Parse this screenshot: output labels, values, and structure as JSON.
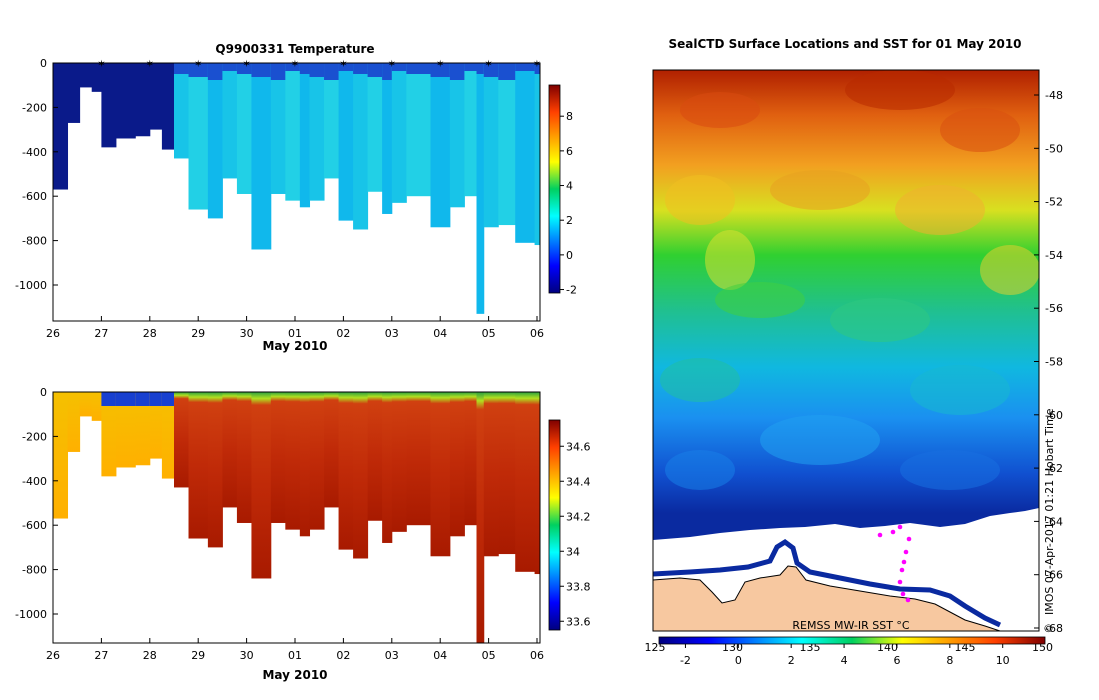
{
  "chart_data": [
    {
      "type": "heatmap",
      "title": "Q9900331  Temperature",
      "xlabel": "May 2010",
      "ylabel": "",
      "x_tick_labels": [
        "26",
        "27",
        "28",
        "29",
        "30",
        "01",
        "02",
        "03",
        "04",
        "05",
        "06"
      ],
      "y_tick_values": [
        0,
        -200,
        -400,
        -600,
        -800,
        -1000
      ],
      "ylim": [
        -1130,
        0
      ],
      "xlim_days": [
        0,
        10.1
      ],
      "colorbar": {
        "ticks": [
          8,
          6,
          4,
          2,
          0,
          -2
        ],
        "range": [
          -2.2,
          9.8
        ]
      },
      "profile_marker_days": [
        1.0,
        2.0,
        3.0,
        4.0,
        5.0,
        6.0,
        7.0,
        8.0,
        9.0,
        10.0
      ],
      "profiles": [
        {
          "day": 0.0,
          "depth": 570
        },
        {
          "day": 0.3,
          "depth": 270
        },
        {
          "day": 0.55,
          "depth": 110
        },
        {
          "day": 0.8,
          "depth": 130
        },
        {
          "day": 1.0,
          "depth": 380
        },
        {
          "day": 1.3,
          "depth": 340
        },
        {
          "day": 1.7,
          "depth": 330
        },
        {
          "day": 2.0,
          "depth": 300
        },
        {
          "day": 2.25,
          "depth": 390
        },
        {
          "day": 2.5,
          "depth": 430
        },
        {
          "day": 2.8,
          "depth": 660
        },
        {
          "day": 3.2,
          "depth": 700
        },
        {
          "day": 3.5,
          "depth": 520
        },
        {
          "day": 3.8,
          "depth": 590
        },
        {
          "day": 4.1,
          "depth": 840
        },
        {
          "day": 4.5,
          "depth": 590
        },
        {
          "day": 4.8,
          "depth": 620
        },
        {
          "day": 5.1,
          "depth": 650
        },
        {
          "day": 5.3,
          "depth": 620
        },
        {
          "day": 5.6,
          "depth": 520
        },
        {
          "day": 5.9,
          "depth": 710
        },
        {
          "day": 6.2,
          "depth": 750
        },
        {
          "day": 6.5,
          "depth": 580
        },
        {
          "day": 6.8,
          "depth": 680
        },
        {
          "day": 7.0,
          "depth": 630
        },
        {
          "day": 7.3,
          "depth": 600
        },
        {
          "day": 7.8,
          "depth": 740
        },
        {
          "day": 8.2,
          "depth": 650
        },
        {
          "day": 8.5,
          "depth": 600
        },
        {
          "day": 8.75,
          "depth": 1130
        },
        {
          "day": 8.9,
          "depth": 740
        },
        {
          "day": 9.2,
          "depth": 730
        },
        {
          "day": 9.55,
          "depth": 810
        },
        {
          "day": 9.95,
          "depth": 820
        }
      ]
    },
    {
      "type": "heatmap",
      "title": "",
      "xlabel": "May 2010",
      "ylabel": "",
      "x_tick_labels": [
        "26",
        "27",
        "28",
        "29",
        "30",
        "01",
        "02",
        "03",
        "04",
        "05",
        "06"
      ],
      "y_tick_values": [
        0,
        -200,
        -400,
        -600,
        -800,
        -1000
      ],
      "ylim": [
        -1130,
        0
      ],
      "colorbar": {
        "ticks": [
          34.6,
          34.4,
          34.2,
          34,
          33.8,
          33.6
        ],
        "range": [
          33.55,
          34.75
        ]
      }
    },
    {
      "type": "heatmap",
      "title": "SealCTD Surface Locations and SST for 01 May 2010",
      "xlabel": "",
      "ylabel": "",
      "y_tick_labels": [
        "-48",
        "-50",
        "-52",
        "-54",
        "-56",
        "-58",
        "-60",
        "-62",
        "-64",
        "-66",
        "-68"
      ],
      "x_tick_labels": [
        "125",
        "130",
        "135",
        "140",
        "145",
        "150"
      ],
      "colorbar": {
        "ticks": [
          -2,
          0,
          2,
          4,
          6,
          8,
          10
        ],
        "range": [
          -3.0,
          11.6
        ]
      },
      "annotation": "REMSS MW-IR SST °C",
      "side_label": "IMOS 07-Apr-2017 01:21 Hobart Time",
      "copyright_symbol": "©"
    }
  ]
}
